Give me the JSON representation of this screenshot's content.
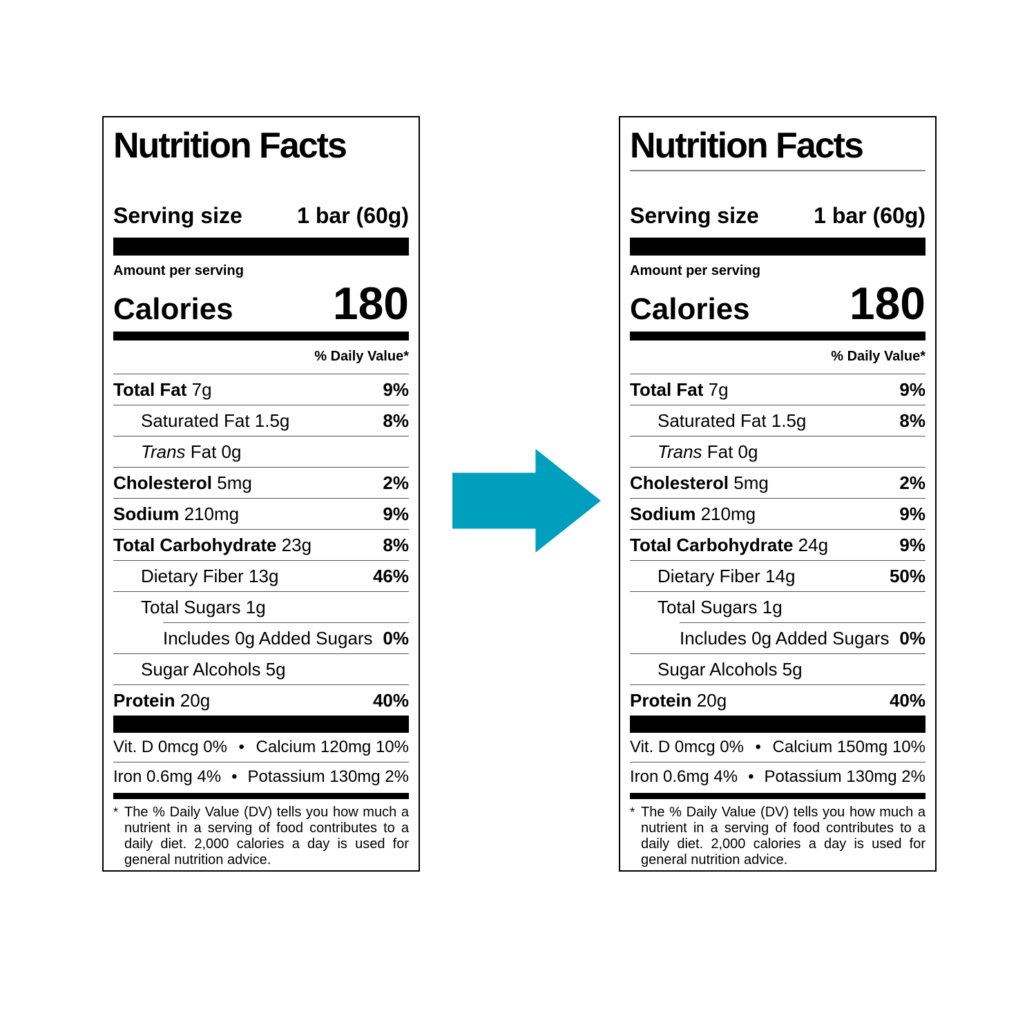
{
  "arrow": {
    "color": "#009FBE"
  },
  "labels": [
    {
      "title": "Nutrition Facts",
      "has_title_underline": false,
      "serving": {
        "label": "Serving size",
        "value": "1 bar (60g)"
      },
      "amount_per_serving": "Amount per serving",
      "calories": {
        "label": "Calories",
        "value": "180"
      },
      "daily_value_header": "% Daily Value*",
      "rows": [
        {
          "bold": "Total Fat",
          "text": " 7g",
          "dv": "9%",
          "indent": 0
        },
        {
          "text": "Saturated Fat 1.5g",
          "dv": "8%",
          "indent": 1
        },
        {
          "italic": "Trans",
          "text": " Fat 0g",
          "dv": "",
          "indent": 1
        },
        {
          "bold": "Cholesterol",
          "text": " 5mg",
          "dv": "2%",
          "indent": 0
        },
        {
          "bold": "Sodium",
          "text": " 210mg",
          "dv": "9%",
          "indent": 0
        },
        {
          "bold": "Total Carbohydrate",
          "text": " 23g",
          "dv": "8%",
          "indent": 0
        },
        {
          "text": "Dietary Fiber 13g",
          "dv": "46%",
          "indent": 1
        },
        {
          "text": "Total Sugars 1g",
          "dv": "",
          "indent": 1,
          "sep_below": "indent"
        },
        {
          "text": "Includes 0g Added Sugars",
          "dv": "0%",
          "indent": 2
        },
        {
          "text": "Sugar Alcohols 5g",
          "dv": "",
          "indent": 1
        },
        {
          "bold": "Protein",
          "text": " 20g",
          "dv": "40%",
          "indent": 0,
          "sep_below": "none"
        }
      ],
      "micronutrients": [
        {
          "left": "Vit. D 0mcg 0%",
          "bullet": "•",
          "right": "Calcium 120mg 10%"
        },
        {
          "left": "Iron 0.6mg 4%",
          "bullet": "•",
          "right": "Potassium 130mg 2%"
        }
      ],
      "footnote_marker": "*",
      "footnote": "The % Daily Value (DV) tells you how much a nutrient in a serving of food contributes to a daily diet. 2,000 calories a day is used for general nutrition advice."
    },
    {
      "title": "Nutrition Facts",
      "has_title_underline": true,
      "serving": {
        "label": "Serving size",
        "value": "1 bar (60g)"
      },
      "amount_per_serving": "Amount per serving",
      "calories": {
        "label": "Calories",
        "value": "180"
      },
      "daily_value_header": "% Daily Value*",
      "rows": [
        {
          "bold": "Total Fat",
          "text": " 7g",
          "dv": "9%",
          "indent": 0
        },
        {
          "text": "Saturated Fat 1.5g",
          "dv": "8%",
          "indent": 1
        },
        {
          "italic": "Trans",
          "text": " Fat 0g",
          "dv": "",
          "indent": 1
        },
        {
          "bold": "Cholesterol",
          "text": " 5mg",
          "dv": "2%",
          "indent": 0
        },
        {
          "bold": "Sodium",
          "text": " 210mg",
          "dv": "9%",
          "indent": 0
        },
        {
          "bold": "Total Carbohydrate",
          "text": " 24g",
          "dv": "9%",
          "indent": 0
        },
        {
          "text": "Dietary Fiber 14g",
          "dv": "50%",
          "indent": 1
        },
        {
          "text": "Total Sugars 1g",
          "dv": "",
          "indent": 1,
          "sep_below": "indent"
        },
        {
          "text": "Includes 0g Added Sugars",
          "dv": "0%",
          "indent": 2
        },
        {
          "text": "Sugar Alcohols 5g",
          "dv": "",
          "indent": 1
        },
        {
          "bold": "Protein",
          "text": " 20g",
          "dv": "40%",
          "indent": 0,
          "sep_below": "none"
        }
      ],
      "micronutrients": [
        {
          "left": "Vit. D 0mcg 0%",
          "bullet": "•",
          "right": "Calcium 150mg 10%"
        },
        {
          "left": "Iron 0.6mg 4%",
          "bullet": "•",
          "right": "Potassium 130mg 2%"
        }
      ],
      "footnote_marker": "*",
      "footnote": "The % Daily Value (DV) tells you how much a nutrient in a serving of food contributes to a daily diet. 2,000 calories a day is used for general nutrition advice."
    }
  ]
}
